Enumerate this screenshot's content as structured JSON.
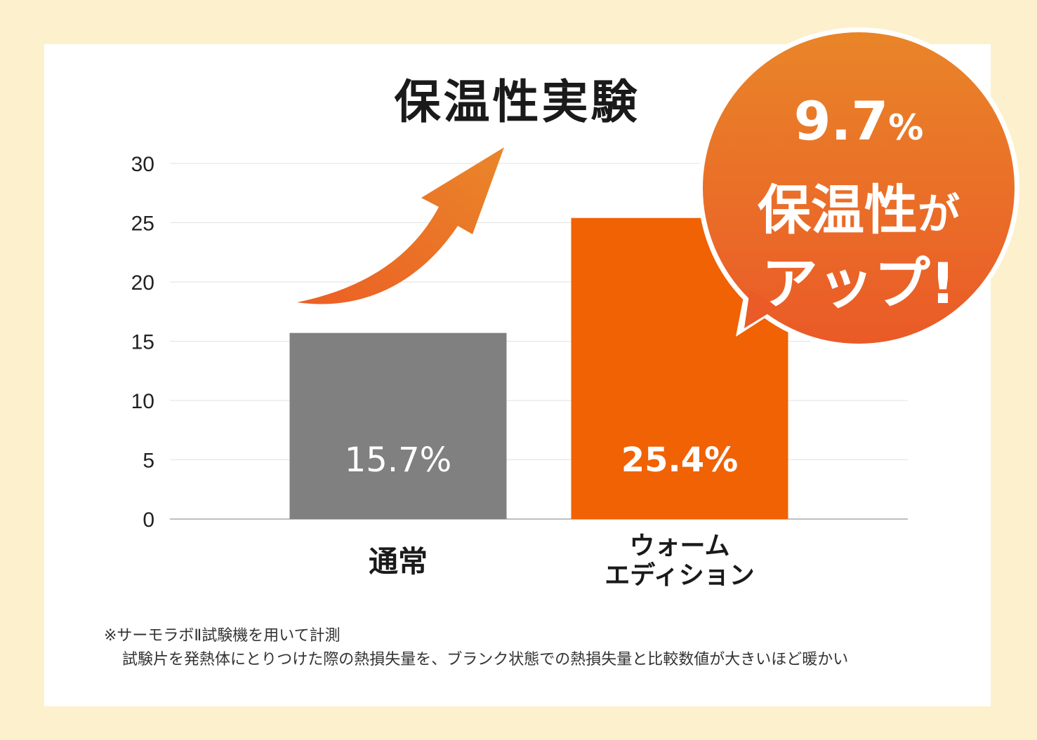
{
  "title": "保温性実験",
  "chart_data": {
    "type": "bar",
    "categories": [
      "通常",
      "ウォーム\nエディション"
    ],
    "values": [
      15.7,
      25.4
    ],
    "data_labels": [
      "15.7%",
      "25.4%"
    ],
    "ylim": [
      0,
      30
    ],
    "yticks": [
      0,
      5,
      10,
      15,
      20,
      25,
      30
    ],
    "grid": true,
    "colors": [
      "#808080",
      "#f06204"
    ]
  },
  "callout": {
    "value": "9.7",
    "unit": "%",
    "line2_main": "保温性",
    "line2_small": "が",
    "line3": "アップ!"
  },
  "footnote": {
    "line1": "※サーモラボⅡ試験機を用いて計測",
    "line2": "試験片を発熱体にとりつけた際の熱損失量を、ブランク状態での熱損失量と比較数値が大きいほど暖かい"
  }
}
